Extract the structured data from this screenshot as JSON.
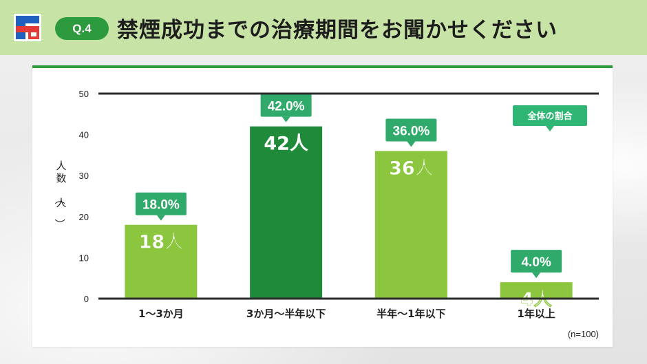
{
  "header": {
    "badge": "Q.4",
    "title": "禁煙成功までの治療期間をお聞かせください"
  },
  "colors": {
    "header_bg": "#c7e3a6",
    "badge_bg": "#2e9a3e",
    "bar_default": "#8cc63f",
    "bar_highlight": "#1e8a3a",
    "label_box": "#2faa6a",
    "legend_box": "#2fb574"
  },
  "chart_data": {
    "type": "bar",
    "categories": [
      "1〜3か月",
      "3か月〜半年以下",
      "半年〜1年以下",
      "1年以上"
    ],
    "values": [
      18,
      42,
      36,
      4
    ],
    "value_labels": [
      "18人",
      "42人",
      "36人",
      "4人"
    ],
    "percent_labels": [
      "18.0%",
      "42.0%",
      "36.0%",
      "4.0%"
    ],
    "highlight_index": 1,
    "ylabel": "人数（人）",
    "yticks": [
      0,
      10,
      20,
      30,
      40,
      50
    ],
    "ylim": [
      0,
      50
    ],
    "legend_label": "全体の割合",
    "note": "(n=100)"
  }
}
